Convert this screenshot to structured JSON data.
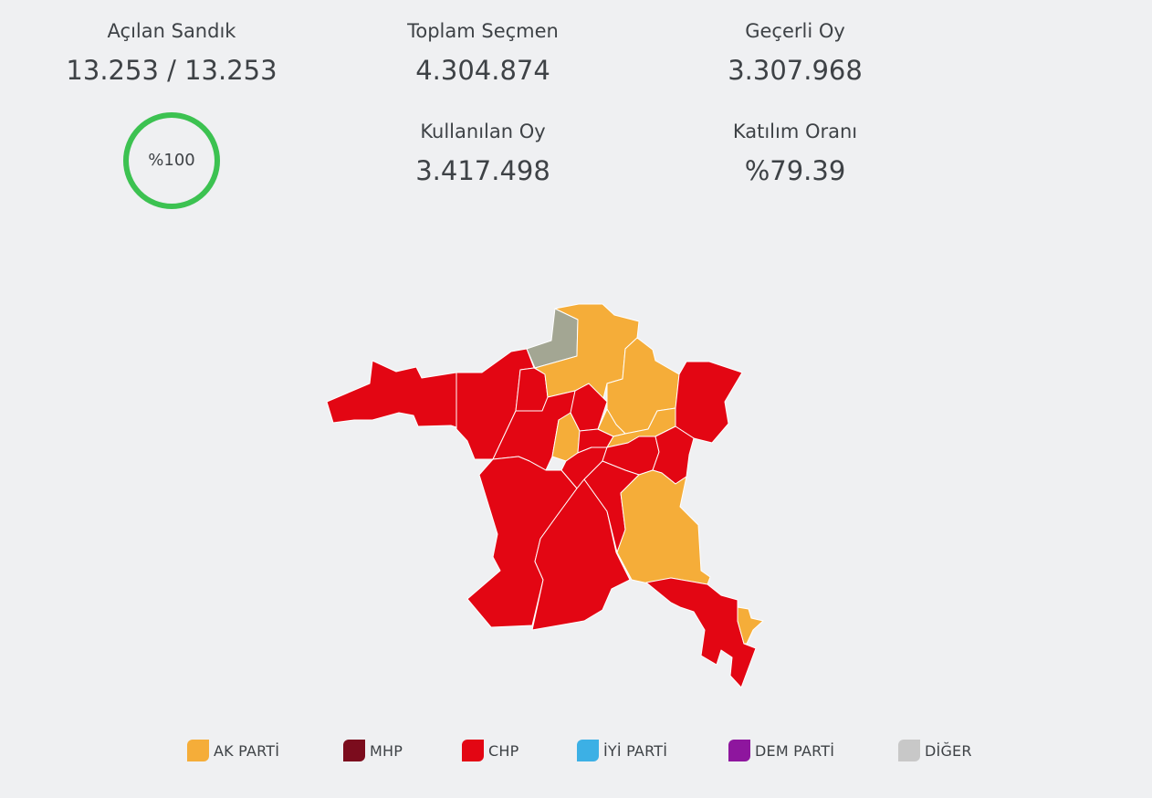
{
  "stats": {
    "opened": {
      "label": "Açılan Sandık",
      "value": "13.253 / 13.253"
    },
    "voters": {
      "label": "Toplam Seçmen",
      "value": "4.304.874"
    },
    "valid": {
      "label": "Geçerli Oy",
      "value": "3.307.968"
    },
    "used": {
      "label": "Kullanılan Oy",
      "value": "3.417.498"
    },
    "turnout": {
      "label": "Katılım Oranı",
      "value": "%79.39"
    }
  },
  "progress": {
    "text": "%100",
    "fraction": 1.0,
    "color": "#3cc251"
  },
  "colors": {
    "ak": "#f5ad39",
    "mhp": "#7b0c1d",
    "chp": "#e30613",
    "iyi": "#3cb0e5",
    "dem": "#8e169e",
    "other": "#a3a693",
    "border": "#ffffff"
  },
  "legend": [
    {
      "label": "AK PARTİ",
      "color": "#f5ad39"
    },
    {
      "label": "MHP",
      "color": "#7b0c1d"
    },
    {
      "label": "CHP",
      "color": "#e30613"
    },
    {
      "label": "İYİ PARTİ",
      "color": "#3cb0e5"
    },
    {
      "label": "DEM PARTİ",
      "color": "#8e169e"
    },
    {
      "label": "DİĞER",
      "color": "#c8c8c8"
    }
  ]
}
